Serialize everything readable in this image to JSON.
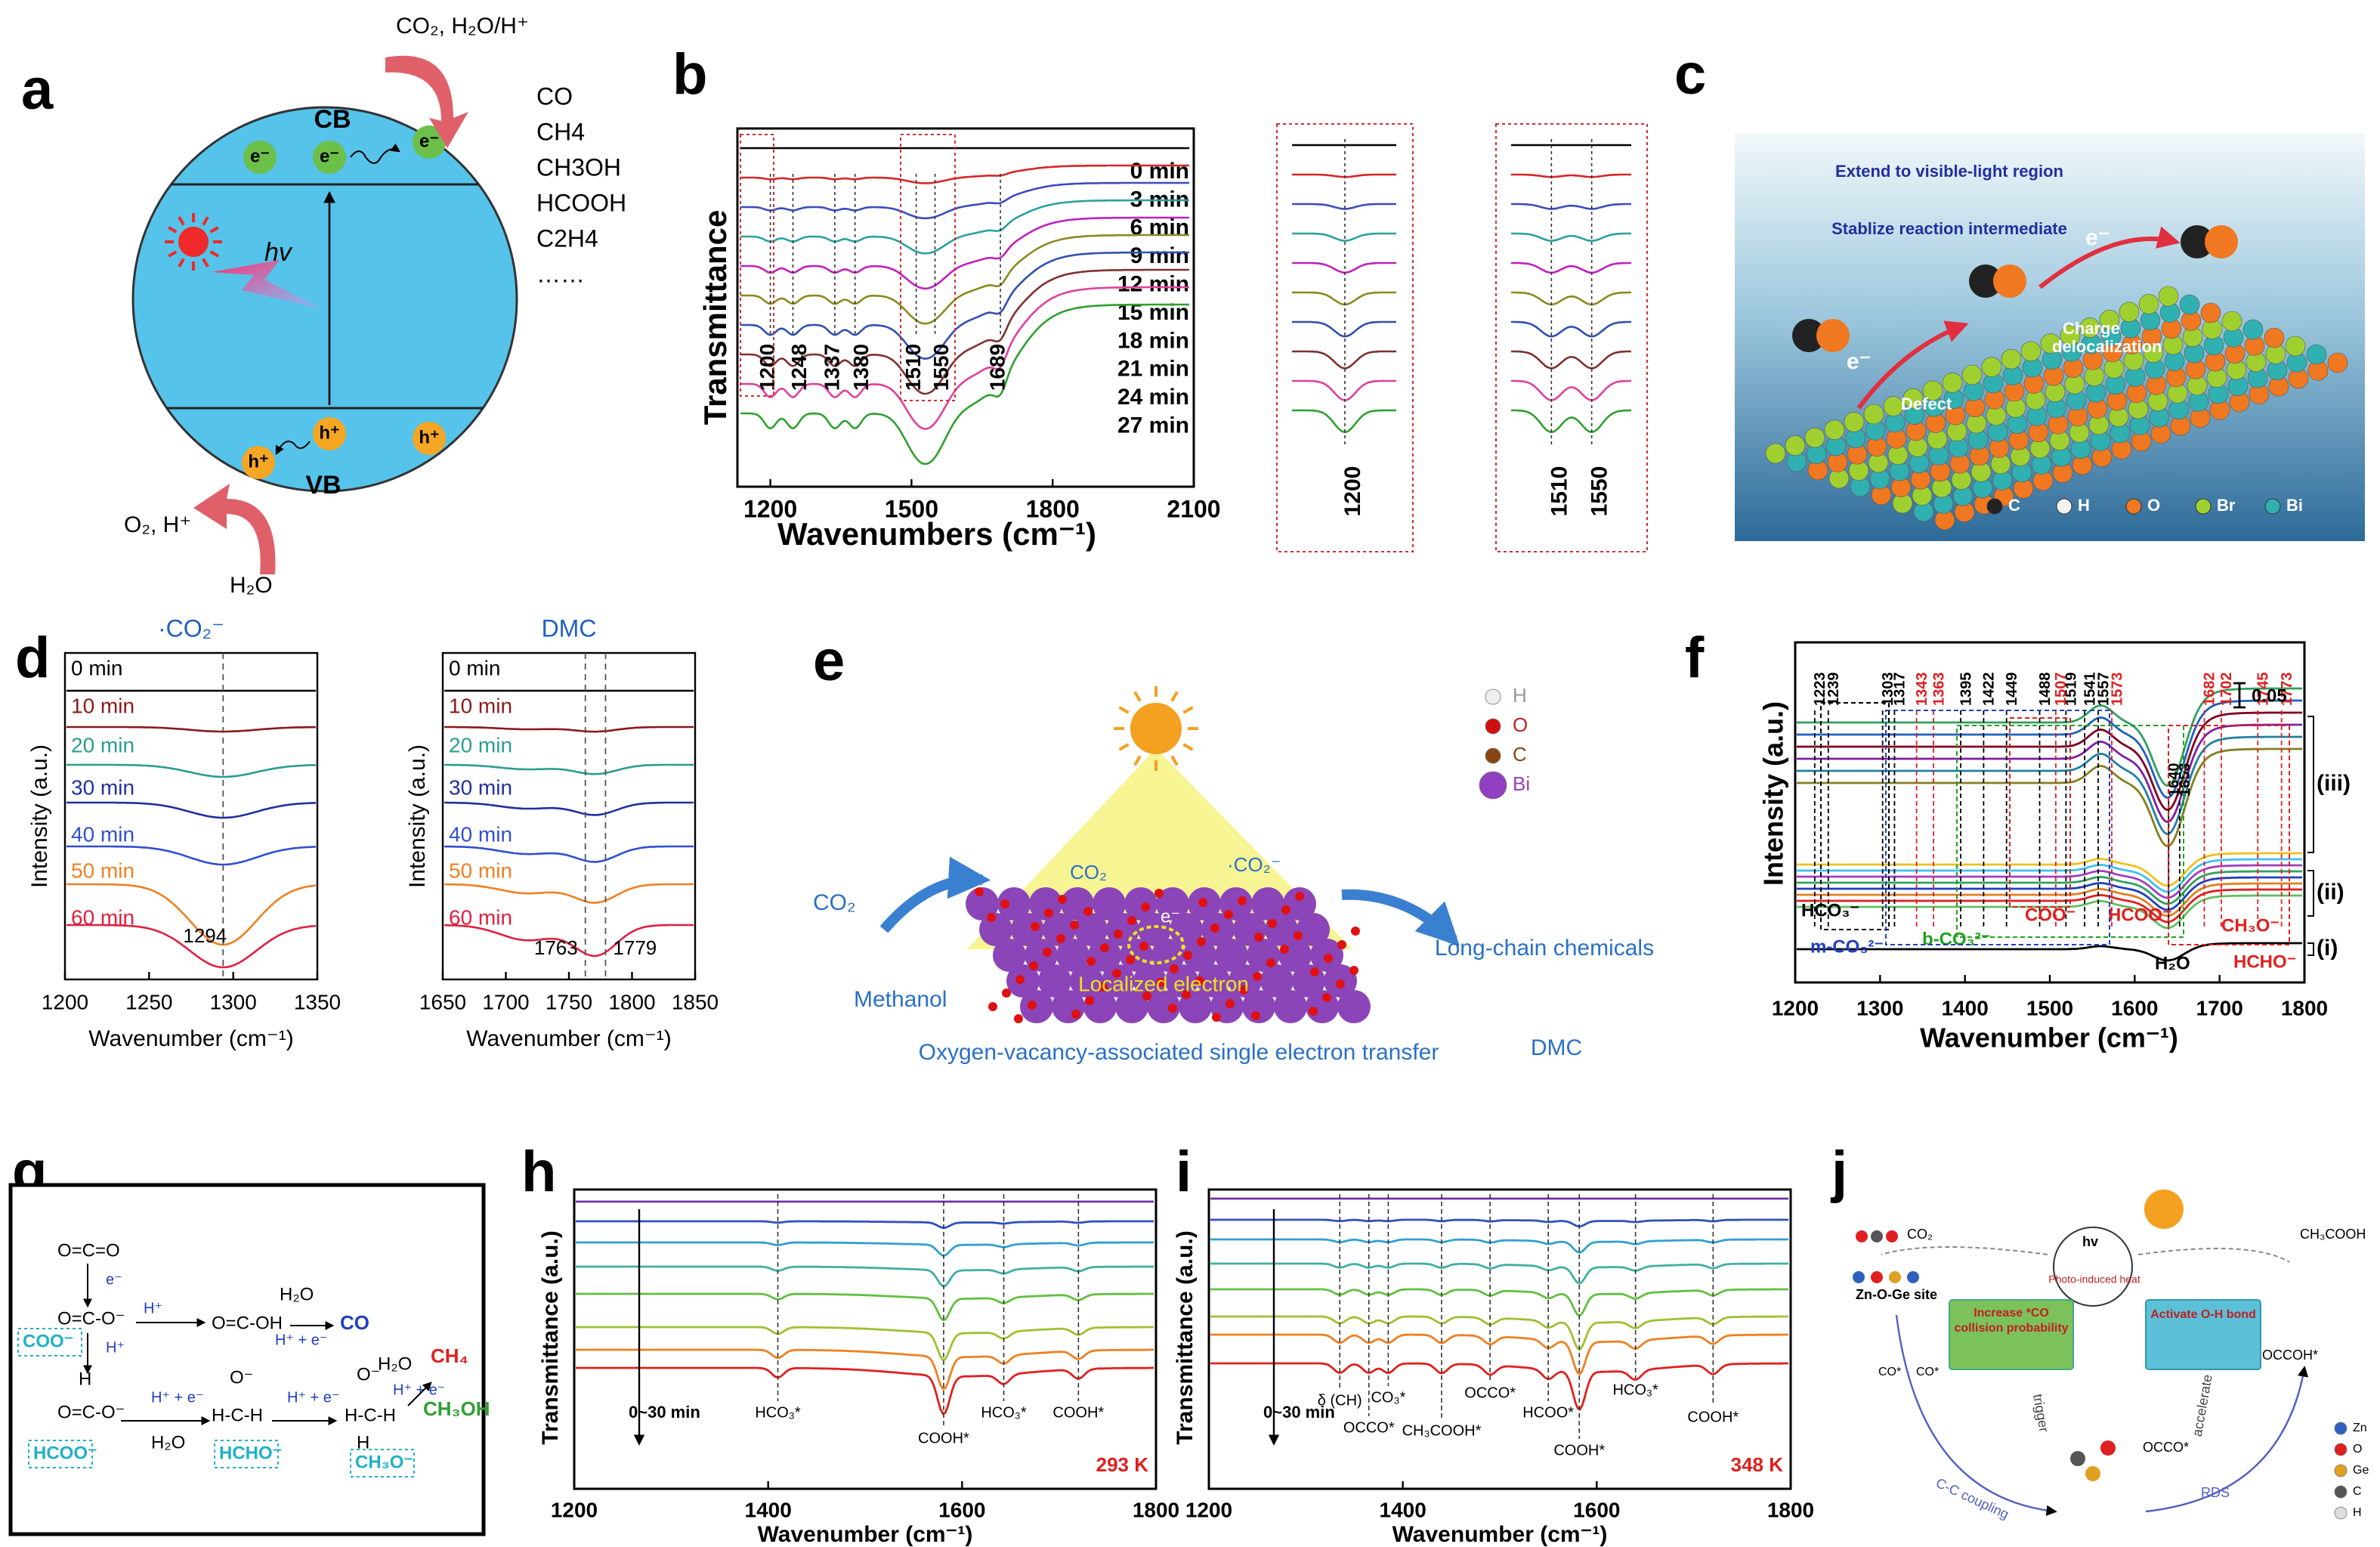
{
  "panels": {
    "a": {
      "label": "a",
      "top": "CO₂, H₂O/H⁺",
      "cb": "CB",
      "vb": "VB",
      "hv": "hv",
      "electron": "e⁻",
      "hole": "h⁺",
      "products": [
        "CO",
        "CH4",
        "CH3OH",
        "HCOOH",
        "C2H4",
        "……"
      ],
      "bottom_products": "O₂, H⁺",
      "water": "H₂O"
    },
    "b": {
      "label": "b",
      "ylabel": "Transmittance",
      "xlabel": "Wavenumbers (cm⁻¹)",
      "xlim": [
        1130,
        2100
      ],
      "xticks": [
        1200,
        1500,
        1800,
        2100
      ],
      "times": [
        "0 min",
        "3 min",
        "6 min",
        "9 min",
        "12 min",
        "15 min",
        "18 min",
        "21 min",
        "24 min",
        "27 min"
      ],
      "colors": [
        "#000000",
        "#d62728",
        "#3b4cc0",
        "#2ca0a0",
        "#c020c0",
        "#8a8a20",
        "#3050b0",
        "#803030",
        "#e040a0",
        "#30a030"
      ],
      "peaks": [
        1200,
        1248,
        1337,
        1380,
        1510,
        1550,
        1689
      ],
      "zoom_peaks_1": [
        1200
      ],
      "zoom_peaks_2": [
        1510,
        1550
      ]
    },
    "c": {
      "label": "c",
      "visible": "Extend to visible-light region",
      "intermediate": "Stablize reaction intermediate",
      "electron": "e⁻",
      "charge": "Charge",
      "delocalization": "delocalization",
      "defect": "Defect",
      "legend": [
        "C",
        "H",
        "O",
        "Br",
        "Bi"
      ],
      "legend_colors": [
        "#222222",
        "#f4f4f4",
        "#f07820",
        "#a0d030",
        "#30b0b0"
      ]
    },
    "d": {
      "label": "d",
      "ylabel": "Intensity (a.u.)",
      "xlabel": "Wavenumber (cm⁻¹)",
      "times": [
        "0 min",
        "10 min",
        "20 min",
        "30 min",
        "40 min",
        "50 min",
        "60 min"
      ],
      "colors": [
        "#000000",
        "#8b1a1a",
        "#2a9d8f",
        "#2030a0",
        "#3050d0",
        "#f08020",
        "#e02040"
      ],
      "plots": [
        {
          "title": "·CO₂⁻",
          "xlim": [
            1200,
            1350
          ],
          "xticks": [
            1200,
            1250,
            1300,
            1350
          ],
          "peaks": [
            1294
          ]
        },
        {
          "title": "DMC",
          "xlim": [
            1650,
            1850
          ],
          "xticks": [
            1650,
            1700,
            1750,
            1800,
            1850
          ],
          "peaks": [
            1763,
            1779
          ]
        }
      ]
    },
    "e": {
      "label": "e",
      "co2_left": "CO₂",
      "methanol": "Methanol",
      "co2_surface": "CO₂",
      "radical": "·CO₂⁻",
      "electron": "e⁻",
      "localized": "Localized electron",
      "caption": "Oxygen-vacancy-associated single electron transfer",
      "products": "Long-chain chemicals",
      "dmc": "DMC",
      "legend": [
        "H",
        "O",
        "C",
        "Bi"
      ],
      "legend_colors": [
        "#eeeeee",
        "#d01010",
        "#8b4513",
        "#9040c0"
      ]
    },
    "f": {
      "label": "f",
      "ylabel": "Intensity (a.u.)",
      "xlabel": "Wavenumber (cm⁻¹)",
      "xlim": [
        1200,
        1800
      ],
      "xticks": [
        1200,
        1300,
        1400,
        1500,
        1600,
        1700,
        1800
      ],
      "black_peaks": [
        1239,
        1223,
        1303,
        1317,
        1395,
        1422,
        1449,
        1488,
        1519,
        1541,
        1557,
        1640,
        1653
      ],
      "red_peaks": [
        1343,
        1363,
        1507,
        1573,
        1682,
        1702,
        1745,
        1773
      ],
      "scale": "0.05",
      "groups": [
        "(i)",
        "(ii)",
        "(iii)"
      ],
      "species": [
        "HCO₃⁻",
        "m-CO₃²⁻",
        "b-CO₃²⁻",
        "COO⁻",
        "HCOO⁻",
        "CH₃O⁻",
        "HCHO⁻",
        "H₂O"
      ]
    },
    "g": {
      "label": "g",
      "texts": [
        "O=C=O",
        "e⁻",
        "O=C-O⁻",
        "H⁺",
        "O=C-OH",
        "H₂O",
        "H⁺ + e⁻",
        "CO",
        "COO⁻",
        "H⁺",
        "H",
        "O=C-O⁻",
        "H⁺ + e⁻",
        "H₂O",
        "O⁻",
        "H-C-H",
        "HCOO⁻",
        "HCHO⁻",
        "H⁺ + e⁻",
        "O⁻",
        "H-C-H",
        "H",
        "CH₃O⁻",
        "H₂O",
        "CH₄",
        "H⁺ + e⁻",
        "CH₃OH"
      ]
    },
    "h": {
      "label": "h",
      "ylabel": "Transmittance (a.u.)",
      "xlabel": "Wavenumber (cm⁻¹)",
      "xlim": [
        1200,
        1800
      ],
      "xticks": [
        1200,
        1400,
        1600,
        1800
      ],
      "time": "0~30 min",
      "temperature": "293 K",
      "bands": [
        {
          "wavenumber": 1410,
          "label": "HCO₃*"
        },
        {
          "wavenumber": 1581,
          "label": "COOH*"
        },
        {
          "wavenumber": 1643,
          "label": "HCO₃*"
        },
        {
          "wavenumber": 1720,
          "label": "COOH*"
        }
      ]
    },
    "i": {
      "label": "i",
      "ylabel": "Transmittance (a.u.)",
      "xlabel": "Wavenumber (cm⁻¹)",
      "xlim": [
        1200,
        1800
      ],
      "xticks": [
        1200,
        1400,
        1600,
        1800
      ],
      "time": "0~30 min",
      "temperature": "348 K",
      "bands": [
        {
          "wavenumber": 1335,
          "label": "δ (CH)"
        },
        {
          "wavenumber": 1365,
          "label": "OCCO*"
        },
        {
          "wavenumber": 1385,
          "label": "CO₃*"
        },
        {
          "wavenumber": 1440,
          "label": "CH₃COOH*"
        },
        {
          "wavenumber": 1490,
          "label": "OCCO*"
        },
        {
          "wavenumber": 1550,
          "label": "HCOO*"
        },
        {
          "wavenumber": 1582,
          "label": "COOH*"
        },
        {
          "wavenumber": 1640,
          "label": "HCO₃*"
        },
        {
          "wavenumber": 1720,
          "label": "COOH*"
        }
      ]
    },
    "j": {
      "label": "j",
      "co2": "CO₂",
      "site": "Zn-O-Ge site",
      "hv": "hv",
      "heat": "Photo-induced heat",
      "increase": "Increase *CO",
      "collision": "collision probability",
      "activate": "Activate O-H bond",
      "acetic": "CH₃COOH",
      "occoh": "OCCOH*",
      "occo": "OCCO*",
      "trigger": "trigger",
      "accelerate": "accelerate",
      "coupling": "C-C coupling",
      "rds": "RDS",
      "co_ads": "CO*",
      "legend": [
        "Zn",
        "O",
        "Ge",
        "C",
        "H"
      ],
      "legend_colors": [
        "#3060c0",
        "#e02020",
        "#e0a020",
        "#555555",
        "#dddddd"
      ]
    }
  }
}
